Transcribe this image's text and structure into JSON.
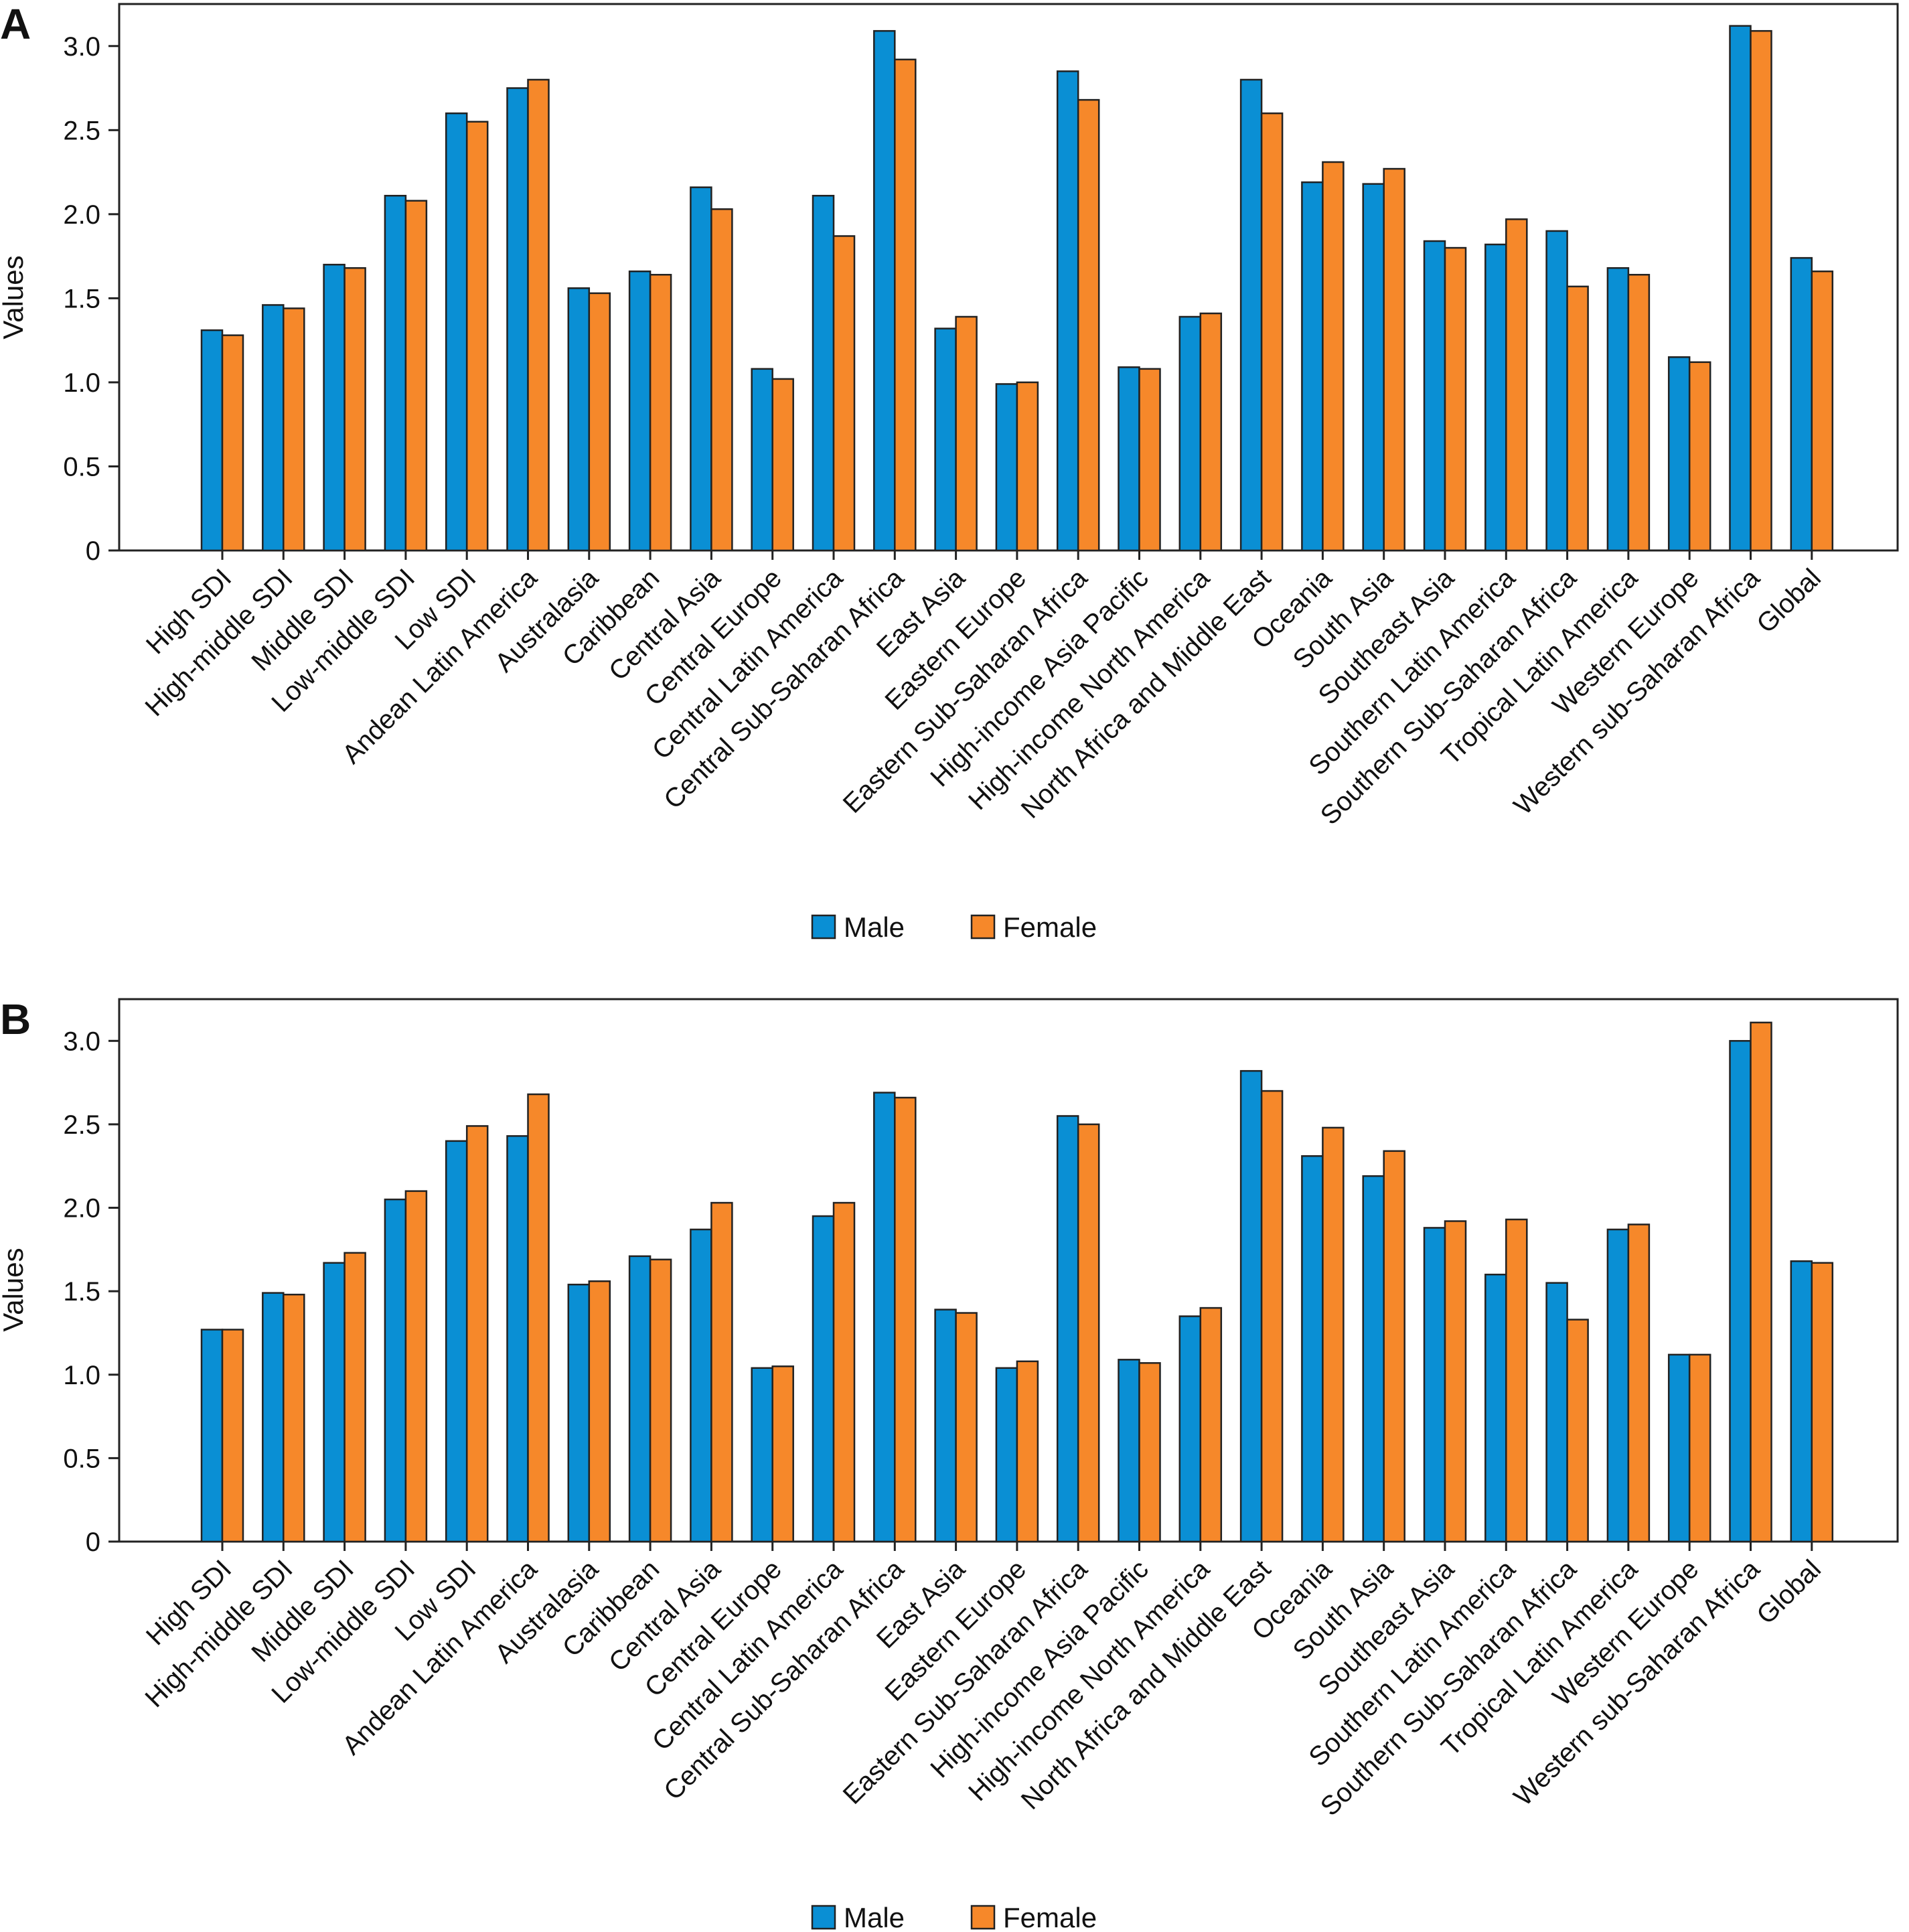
{
  "chart_data": [
    {
      "type": "bar",
      "panel_label": "A",
      "title": "",
      "xlabel": "",
      "ylabel": "Values",
      "ylim": [
        0,
        3.25
      ],
      "yticks": [
        0,
        0.5,
        1.0,
        1.5,
        2.0,
        2.5,
        3.0
      ],
      "ytick_labels": [
        "0",
        "0.5",
        "1.0",
        "1.5",
        "2.0",
        "2.5",
        "3.0"
      ],
      "grid": false,
      "legend_position": "bottom-center",
      "categories": [
        "High SDI",
        "High-middle SDI",
        "Middle SDI",
        "Low-middle SDI",
        "Low SDI",
        "Andean Latin America",
        "Australasia",
        "Caribbean",
        "Central Asia",
        "Central Europe",
        "Central Latin America",
        "Central Sub-Saharan Africa",
        "East Asia",
        "Eastern Europe",
        "Eastern Sub-Saharan Africa",
        "High-income Asia Pacific",
        "High-income North America",
        "North Africa and Middle East",
        "Oceania",
        "South Asia",
        "Southeast Asia",
        "Southern Latin America",
        "Southern Sub-Saharan Africa",
        "Tropical Latin America",
        "Western Europe",
        "Western sub-Saharan Africa",
        "Global"
      ],
      "series": [
        {
          "name": "Male",
          "color": "#0a8fd4",
          "values": [
            1.31,
            1.46,
            1.7,
            2.11,
            2.6,
            2.75,
            1.56,
            1.66,
            2.16,
            1.08,
            2.11,
            3.09,
            1.32,
            0.99,
            2.85,
            1.09,
            1.39,
            2.8,
            2.19,
            2.18,
            1.84,
            1.82,
            1.9,
            1.68,
            1.15,
            3.12,
            1.74
          ]
        },
        {
          "name": "Female",
          "color": "#f6882a",
          "values": [
            1.28,
            1.44,
            1.68,
            2.08,
            2.55,
            2.8,
            1.53,
            1.64,
            2.03,
            1.02,
            1.87,
            2.92,
            1.39,
            1.0,
            2.68,
            1.08,
            1.41,
            2.6,
            2.31,
            2.27,
            1.8,
            1.97,
            1.57,
            1.64,
            1.12,
            3.09,
            1.66
          ]
        }
      ]
    },
    {
      "type": "bar",
      "panel_label": "B",
      "title": "",
      "xlabel": "",
      "ylabel": "Values",
      "ylim": [
        0,
        3.25
      ],
      "yticks": [
        0,
        0.5,
        1.0,
        1.5,
        2.0,
        2.5,
        3.0
      ],
      "ytick_labels": [
        "0",
        "0.5",
        "1.0",
        "1.5",
        "2.0",
        "2.5",
        "3.0"
      ],
      "grid": false,
      "legend_position": "bottom-center",
      "categories": [
        "High SDI",
        "High-middle SDI",
        "Middle SDI",
        "Low-middle SDI",
        "Low SDI",
        "Andean Latin America",
        "Australasia",
        "Caribbean",
        "Central Asia",
        "Central Europe",
        "Central Latin America",
        "Central Sub-Saharan Africa",
        "East Asia",
        "Eastern Europe",
        "Eastern Sub-Saharan Africa",
        "High-income Asia Pacific",
        "High-income North America",
        "North Africa and Middle East",
        "Oceania",
        "South Asia",
        "Southeast Asia",
        "Southern Latin America",
        "Southern Sub-Saharan Africa",
        "Tropical Latin America",
        "Western Europe",
        "Western sub-Saharan Africa",
        "Global"
      ],
      "series": [
        {
          "name": "Male",
          "color": "#0a8fd4",
          "values": [
            1.27,
            1.49,
            1.67,
            2.05,
            2.4,
            2.43,
            1.54,
            1.71,
            1.87,
            1.04,
            1.95,
            2.69,
            1.39,
            1.04,
            2.55,
            1.09,
            1.35,
            2.82,
            2.31,
            2.19,
            1.88,
            1.6,
            1.55,
            1.87,
            1.12,
            3.0,
            1.68
          ]
        },
        {
          "name": "Female",
          "color": "#f6882a",
          "values": [
            1.27,
            1.48,
            1.73,
            2.1,
            2.49,
            2.68,
            1.56,
            1.69,
            2.03,
            1.05,
            2.03,
            2.66,
            1.37,
            1.08,
            2.5,
            1.07,
            1.4,
            2.7,
            2.48,
            2.34,
            1.92,
            1.93,
            1.33,
            1.9,
            1.12,
            3.11,
            1.67
          ]
        }
      ]
    }
  ]
}
